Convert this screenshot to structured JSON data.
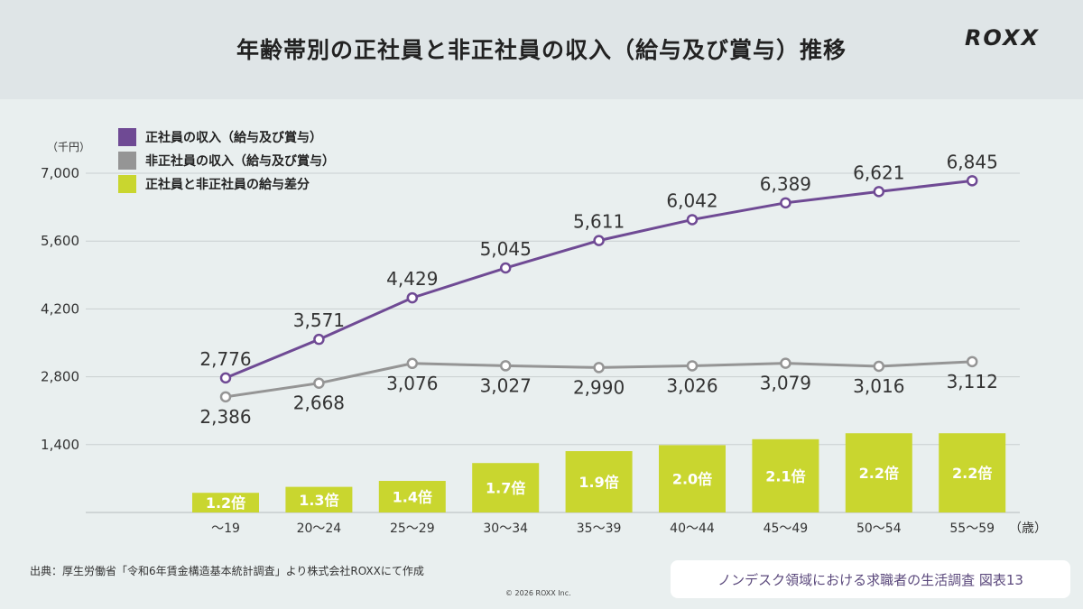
{
  "header": {
    "title": "年齢帯別の正社員と非正社員の収入（給与及び賞与）推移",
    "logo": "ROXX"
  },
  "footer": {
    "source": "出典：厚生労働省「令和6年賃金構造基本統計調査」より株式会社ROXXにて作成",
    "copyright": "© 2026 ROXX Inc.",
    "badge": "ノンデスク領域における求職者の生活調査 図表13"
  },
  "chart_data": {
    "type": "line",
    "y_unit": "（千円）",
    "x_unit": "（歳）",
    "ylim": [
      0,
      7000
    ],
    "yticks": [
      "1,400",
      "2,800",
      "4,200",
      "5,600",
      "7,000"
    ],
    "ytick_values": [
      1400,
      2800,
      4200,
      5600,
      7000
    ],
    "grid": true,
    "legend_position": "top-left",
    "categories": [
      "〜19",
      "20〜24",
      "25〜29",
      "30〜34",
      "35〜39",
      "40〜44",
      "45〜49",
      "50〜54",
      "55〜59"
    ],
    "series": [
      {
        "name": "正社員の収入（給与及び賞与）",
        "color": "#6f4a94",
        "values": [
          2776,
          3571,
          4429,
          5045,
          5611,
          6042,
          6389,
          6621,
          6845
        ],
        "labels": [
          "2,776",
          "3,571",
          "4,429",
          "5,045",
          "5,611",
          "6,042",
          "6,389",
          "6,621",
          "6,845"
        ]
      },
      {
        "name": "非正社員の収入（給与及び賞与）",
        "color": "#959595",
        "values": [
          2386,
          2668,
          3076,
          3027,
          2990,
          3026,
          3079,
          3016,
          3112
        ],
        "labels": [
          "2,386",
          "2,668",
          "3,076",
          "3,027",
          "2,990",
          "3,026",
          "3,079",
          "3,016",
          "3,112"
        ]
      },
      {
        "name": "正社員と非正社員の給与差分",
        "color": "#c9d62f",
        "type": "bar",
        "values": [
          1.2,
          1.3,
          1.4,
          1.7,
          1.9,
          2.0,
          2.1,
          2.2,
          2.2
        ],
        "labels": [
          "1.2倍",
          "1.3倍",
          "1.4倍",
          "1.7倍",
          "1.9倍",
          "2.0倍",
          "2.1倍",
          "2.2倍",
          "2.2倍"
        ]
      }
    ]
  }
}
